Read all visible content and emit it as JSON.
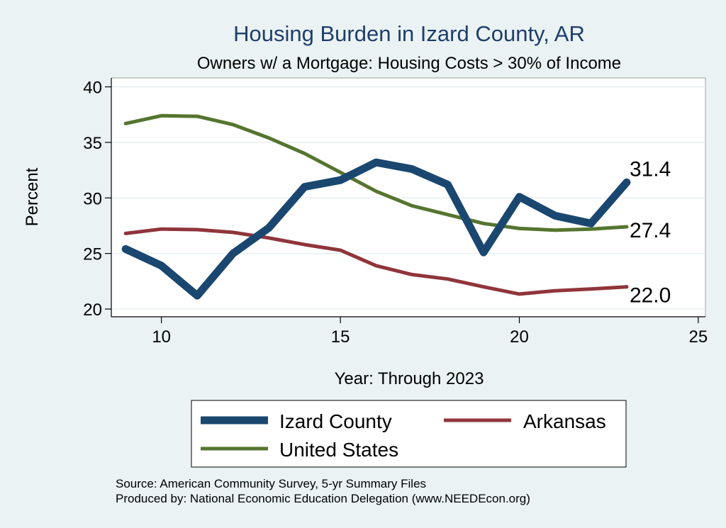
{
  "chart_data": {
    "type": "line",
    "title": "Housing Burden in Izard County, AR",
    "subtitle": "Owners w/ a Mortgage: Housing Costs > 30% of Income",
    "xlabel": "Year: Through 2023",
    "ylabel": "Percent",
    "xlim": [
      8.6,
      25.2
    ],
    "ylim": [
      19.3,
      40.8
    ],
    "xticks": [
      10,
      15,
      20,
      25
    ],
    "yticks": [
      20,
      25,
      30,
      35,
      40
    ],
    "x": [
      9,
      10,
      11,
      12,
      13,
      14,
      15,
      16,
      17,
      18,
      19,
      20,
      21,
      22,
      23
    ],
    "series": [
      {
        "name": "Izard County",
        "color": "#1a476f",
        "values": [
          25.4,
          23.9,
          21.2,
          25.0,
          27.3,
          31.0,
          31.6,
          33.2,
          32.6,
          31.2,
          25.1,
          30.1,
          28.4,
          27.7,
          31.4
        ],
        "end_label": "31.4"
      },
      {
        "name": "Arkansas",
        "color": "#90353b",
        "values": [
          26.8,
          27.2,
          27.15,
          26.9,
          26.4,
          25.8,
          25.3,
          23.9,
          23.1,
          22.7,
          22.0,
          21.35,
          21.65,
          21.8,
          22.0
        ],
        "end_label": "22.0"
      },
      {
        "name": "United States",
        "color": "#55752f",
        "values": [
          36.7,
          37.4,
          37.35,
          36.6,
          35.4,
          34.0,
          32.3,
          30.6,
          29.3,
          28.5,
          27.7,
          27.25,
          27.1,
          27.2,
          27.4
        ],
        "end_label": "27.4"
      }
    ],
    "notes": [
      "Source: American Community Survey, 5-yr Summary Files",
      "Produced by: National Economic Education Delegation (www.NEEDEcon.org)"
    ]
  }
}
